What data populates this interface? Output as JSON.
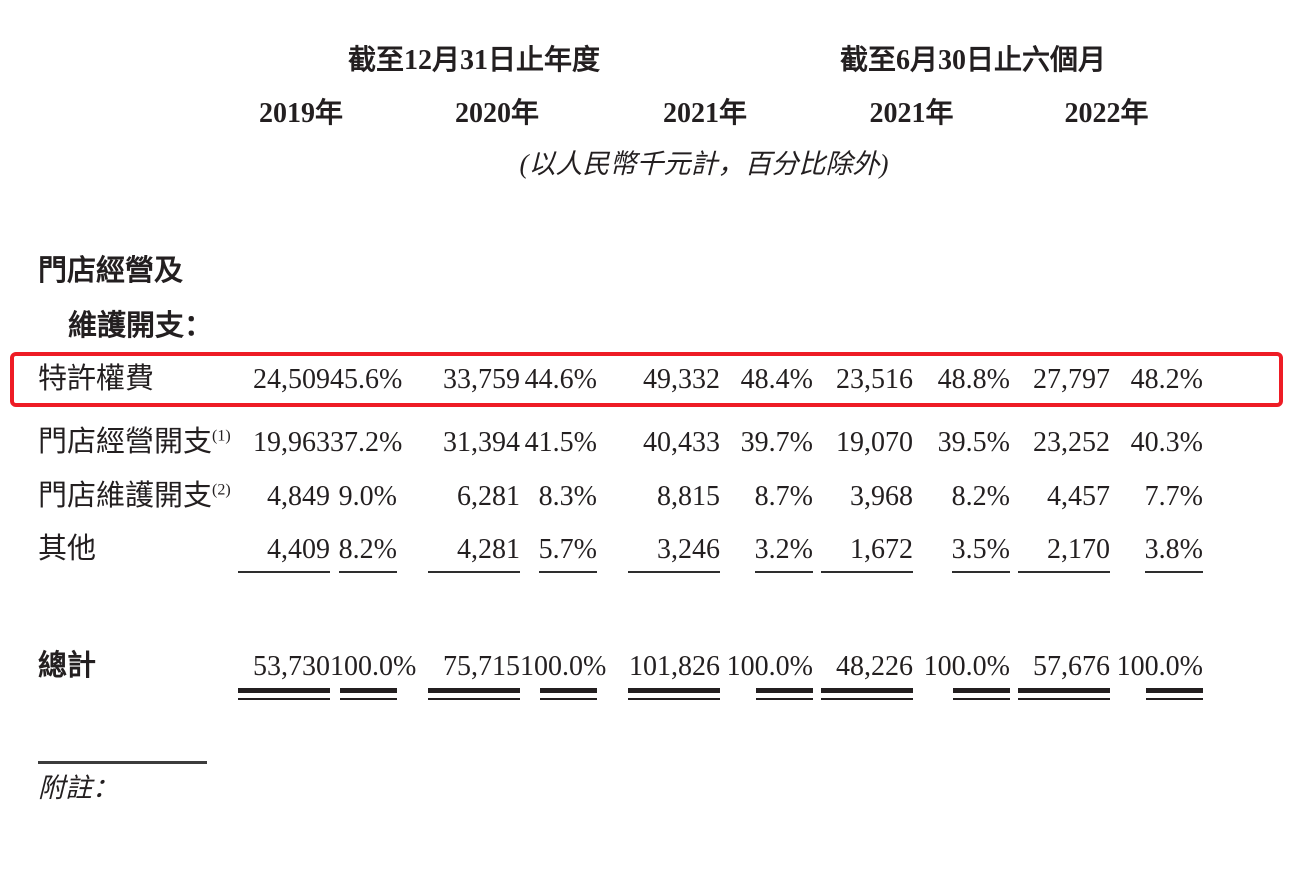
{
  "meta": {
    "ink_color": "#231f20",
    "highlight_color": "#ee1c25",
    "currency_unit_scope": "document-table"
  },
  "header": {
    "period_groups": [
      {
        "label": "截至12月31日止年度"
      },
      {
        "label": "截至6月30日止六個月"
      }
    ],
    "years": [
      "2019年",
      "2020年",
      "2021年",
      "2021年",
      "2022年"
    ],
    "unit_note": "(以人民幣千元計，百分比除外)"
  },
  "section": {
    "line1": "門店經營及",
    "line2": "維護開支："
  },
  "rows": [
    {
      "label": "特許權費",
      "sup": "",
      "highlighted": true,
      "values": [
        "24,509",
        "45.6%",
        "33,759",
        "44.6%",
        "49,332",
        "48.4%",
        "23,516",
        "48.8%",
        "27,797",
        "48.2%"
      ]
    },
    {
      "label": "門店經營開支",
      "sup": "(1)",
      "highlighted": false,
      "values": [
        "19,963",
        "37.2%",
        "31,394",
        "41.5%",
        "40,433",
        "39.7%",
        "19,070",
        "39.5%",
        "23,252",
        "40.3%"
      ]
    },
    {
      "label": "門店維護開支",
      "sup": "(2)",
      "highlighted": false,
      "values": [
        "4,849",
        "9.0%",
        "6,281",
        "8.3%",
        "8,815",
        "8.7%",
        "3,968",
        "8.2%",
        "4,457",
        "7.7%"
      ]
    },
    {
      "label": "其他",
      "sup": "",
      "highlighted": false,
      "underline": "single",
      "values": [
        "4,409",
        "8.2%",
        "4,281",
        "5.7%",
        "3,246",
        "3.2%",
        "1,672",
        "3.5%",
        "2,170",
        "3.8%"
      ]
    }
  ],
  "total": {
    "label": "總計",
    "underline": "double",
    "values": [
      "53,730",
      "100.0%",
      "75,715",
      "100.0%",
      "101,826",
      "100.0%",
      "48,226",
      "100.0%",
      "57,676",
      "100.0%"
    ]
  },
  "footnote": {
    "label": "附註："
  }
}
